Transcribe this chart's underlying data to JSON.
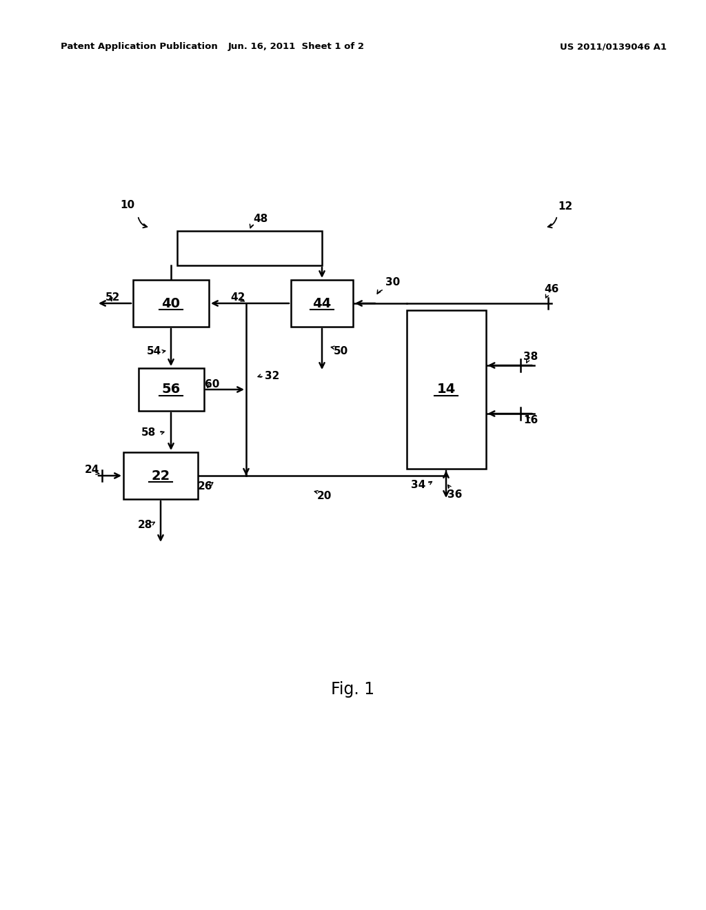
{
  "bg_color": "#ffffff",
  "header_left": "Patent Application Publication",
  "header_mid": "Jun. 16, 2011  Sheet 1 of 2",
  "header_right": "US 2011/0139046 A1",
  "fig_label": "Fig. 1"
}
